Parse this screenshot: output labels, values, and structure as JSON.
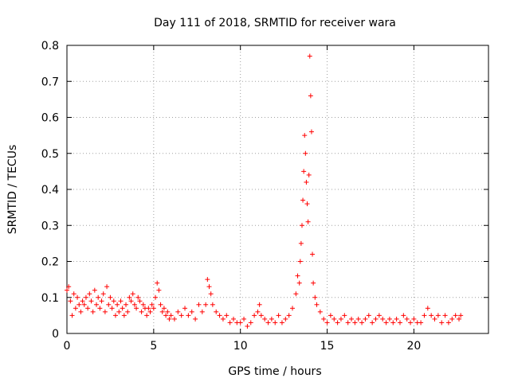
{
  "chart_data": {
    "type": "scatter",
    "title": "Day 111 of 2018, SRMTID for receiver wara",
    "xlabel": "GPS time / hours",
    "ylabel": "SRMTID / TECUs",
    "xlim": [
      0,
      24.3
    ],
    "ylim": [
      0,
      0.8
    ],
    "xticks": [
      "0",
      "5",
      "10",
      "15",
      "20"
    ],
    "yticks": [
      "0",
      "0.1",
      "0.2",
      "0.3",
      "0.4",
      "0.5",
      "0.6",
      "0.7",
      "0.8"
    ],
    "grid": true,
    "marker": "plus",
    "color": "#ff0000",
    "series": [
      {
        "name": "SRMTID",
        "points": [
          [
            0.0,
            0.12
          ],
          [
            0.1,
            0.13
          ],
          [
            0.2,
            0.09
          ],
          [
            0.3,
            0.05
          ],
          [
            0.4,
            0.11
          ],
          [
            0.5,
            0.07
          ],
          [
            0.6,
            0.1
          ],
          [
            0.7,
            0.08
          ],
          [
            0.8,
            0.06
          ],
          [
            0.9,
            0.09
          ],
          [
            1.0,
            0.08
          ],
          [
            1.1,
            0.1
          ],
          [
            1.2,
            0.07
          ],
          [
            1.3,
            0.11
          ],
          [
            1.4,
            0.09
          ],
          [
            1.5,
            0.06
          ],
          [
            1.6,
            0.12
          ],
          [
            1.7,
            0.08
          ],
          [
            1.8,
            0.1
          ],
          [
            1.9,
            0.07
          ],
          [
            2.0,
            0.09
          ],
          [
            2.1,
            0.11
          ],
          [
            2.2,
            0.06
          ],
          [
            2.3,
            0.13
          ],
          [
            2.4,
            0.08
          ],
          [
            2.5,
            0.1
          ],
          [
            2.6,
            0.07
          ],
          [
            2.7,
            0.09
          ],
          [
            2.8,
            0.05
          ],
          [
            2.9,
            0.08
          ],
          [
            3.0,
            0.06
          ],
          [
            3.1,
            0.09
          ],
          [
            3.2,
            0.07
          ],
          [
            3.3,
            0.05
          ],
          [
            3.4,
            0.08
          ],
          [
            3.5,
            0.06
          ],
          [
            3.6,
            0.1
          ],
          [
            3.7,
            0.09
          ],
          [
            3.8,
            0.11
          ],
          [
            3.9,
            0.08
          ],
          [
            4.0,
            0.07
          ],
          [
            4.1,
            0.1
          ],
          [
            4.2,
            0.09
          ],
          [
            4.3,
            0.06
          ],
          [
            4.4,
            0.08
          ],
          [
            4.5,
            0.07
          ],
          [
            4.6,
            0.05
          ],
          [
            4.7,
            0.07
          ],
          [
            4.8,
            0.06
          ],
          [
            4.9,
            0.08
          ],
          [
            5.0,
            0.07
          ],
          [
            5.1,
            0.1
          ],
          [
            5.2,
            0.14
          ],
          [
            5.3,
            0.12
          ],
          [
            5.4,
            0.08
          ],
          [
            5.5,
            0.06
          ],
          [
            5.6,
            0.07
          ],
          [
            5.7,
            0.05
          ],
          [
            5.8,
            0.06
          ],
          [
            5.9,
            0.04
          ],
          [
            6.0,
            0.05
          ],
          [
            6.2,
            0.04
          ],
          [
            6.4,
            0.06
          ],
          [
            6.6,
            0.05
          ],
          [
            6.8,
            0.07
          ],
          [
            7.0,
            0.05
          ],
          [
            7.2,
            0.06
          ],
          [
            7.4,
            0.04
          ],
          [
            7.6,
            0.08
          ],
          [
            7.8,
            0.06
          ],
          [
            8.0,
            0.08
          ],
          [
            8.1,
            0.15
          ],
          [
            8.2,
            0.13
          ],
          [
            8.3,
            0.11
          ],
          [
            8.4,
            0.08
          ],
          [
            8.6,
            0.06
          ],
          [
            8.8,
            0.05
          ],
          [
            9.0,
            0.04
          ],
          [
            9.2,
            0.05
          ],
          [
            9.4,
            0.03
          ],
          [
            9.6,
            0.04
          ],
          [
            9.8,
            0.03
          ],
          [
            10.0,
            0.03
          ],
          [
            10.2,
            0.04
          ],
          [
            10.4,
            0.02
          ],
          [
            10.6,
            0.03
          ],
          [
            10.8,
            0.05
          ],
          [
            11.0,
            0.06
          ],
          [
            11.1,
            0.08
          ],
          [
            11.2,
            0.05
          ],
          [
            11.4,
            0.04
          ],
          [
            11.6,
            0.03
          ],
          [
            11.8,
            0.04
          ],
          [
            12.0,
            0.03
          ],
          [
            12.2,
            0.05
          ],
          [
            12.4,
            0.03
          ],
          [
            12.6,
            0.04
          ],
          [
            12.8,
            0.05
          ],
          [
            13.0,
            0.07
          ],
          [
            13.2,
            0.11
          ],
          [
            13.3,
            0.16
          ],
          [
            13.4,
            0.14
          ],
          [
            13.45,
            0.2
          ],
          [
            13.5,
            0.25
          ],
          [
            13.55,
            0.3
          ],
          [
            13.6,
            0.37
          ],
          [
            13.65,
            0.45
          ],
          [
            13.7,
            0.55
          ],
          [
            13.75,
            0.5
          ],
          [
            13.8,
            0.42
          ],
          [
            13.85,
            0.36
          ],
          [
            13.9,
            0.31
          ],
          [
            13.95,
            0.44
          ],
          [
            14.0,
            0.77
          ],
          [
            14.05,
            0.66
          ],
          [
            14.1,
            0.56
          ],
          [
            14.15,
            0.22
          ],
          [
            14.2,
            0.14
          ],
          [
            14.3,
            0.1
          ],
          [
            14.4,
            0.08
          ],
          [
            14.6,
            0.06
          ],
          [
            14.8,
            0.04
          ],
          [
            15.0,
            0.03
          ],
          [
            15.2,
            0.05
          ],
          [
            15.4,
            0.04
          ],
          [
            15.6,
            0.03
          ],
          [
            15.8,
            0.04
          ],
          [
            16.0,
            0.05
          ],
          [
            16.2,
            0.03
          ],
          [
            16.4,
            0.04
          ],
          [
            16.6,
            0.03
          ],
          [
            16.8,
            0.04
          ],
          [
            17.0,
            0.03
          ],
          [
            17.2,
            0.04
          ],
          [
            17.4,
            0.05
          ],
          [
            17.6,
            0.03
          ],
          [
            17.8,
            0.04
          ],
          [
            18.0,
            0.05
          ],
          [
            18.2,
            0.04
          ],
          [
            18.4,
            0.03
          ],
          [
            18.6,
            0.04
          ],
          [
            18.8,
            0.03
          ],
          [
            19.0,
            0.04
          ],
          [
            19.2,
            0.03
          ],
          [
            19.4,
            0.05
          ],
          [
            19.6,
            0.04
          ],
          [
            19.8,
            0.03
          ],
          [
            20.0,
            0.04
          ],
          [
            20.2,
            0.03
          ],
          [
            20.4,
            0.03
          ],
          [
            20.6,
            0.05
          ],
          [
            20.8,
            0.07
          ],
          [
            21.0,
            0.05
          ],
          [
            21.2,
            0.04
          ],
          [
            21.4,
            0.05
          ],
          [
            21.6,
            0.03
          ],
          [
            21.8,
            0.05
          ],
          [
            22.0,
            0.03
          ],
          [
            22.2,
            0.04
          ],
          [
            22.4,
            0.05
          ],
          [
            22.6,
            0.04
          ],
          [
            22.7,
            0.05
          ]
        ]
      }
    ]
  }
}
